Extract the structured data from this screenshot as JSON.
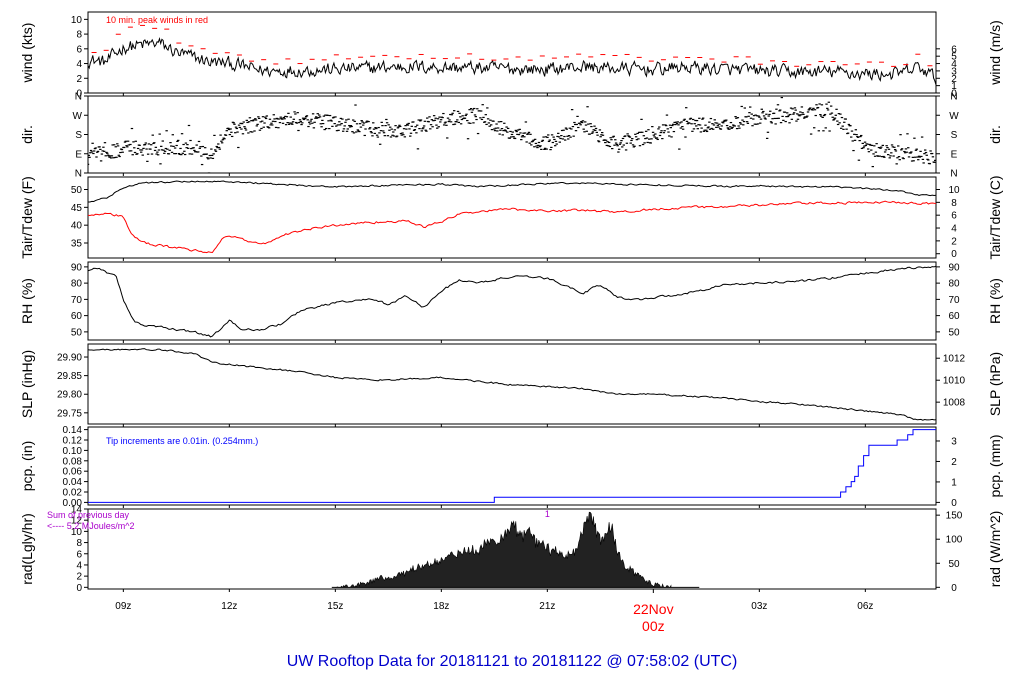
{
  "title": "UW Rooftop Data for 20181121  to  20181122 @ 07:58:02  (UTC)",
  "colors": {
    "text": "#000000",
    "red": "#ff0000",
    "blue": "#0000ff",
    "purple": "#aa00cc",
    "title": "#0000cc",
    "fill": "#222222"
  },
  "chart_data": {
    "type": "line",
    "x_axis": {
      "start_hour": 8.0,
      "end_hour": 32.0,
      "ticks": [
        {
          "hour": 9,
          "label": "09z"
        },
        {
          "hour": 12,
          "label": "12z"
        },
        {
          "hour": 15,
          "label": "15z"
        },
        {
          "hour": 18,
          "label": "18z"
        },
        {
          "hour": 21,
          "label": "21z"
        },
        {
          "hour": 27,
          "label": "03z"
        },
        {
          "hour": 30,
          "label": "06z"
        }
      ],
      "day_marker": {
        "hour": 24,
        "date_label": "22Nov",
        "time_label": "00z"
      }
    },
    "panels": [
      {
        "id": "wind",
        "ylabel_left": "wind (kts)",
        "ylabel_right": "wind (m/s)",
        "ylim": [
          0,
          11
        ],
        "left_ticks": [
          0,
          2,
          4,
          6,
          8,
          10
        ],
        "right_ticks": [
          {
            "v": 0,
            "l": "0"
          },
          {
            "v": 1,
            "l": "1"
          },
          {
            "v": 2,
            "l": "2"
          },
          {
            "v": 3,
            "l": "3"
          },
          {
            "v": 4,
            "l": "4"
          },
          {
            "v": 5,
            "l": "5"
          },
          {
            "v": 6,
            "l": "6"
          }
        ],
        "right_scale": 0.514444,
        "annotation": {
          "text": "10 min. peak winds in red",
          "color": "red"
        },
        "series": [
          {
            "style": "noisy",
            "color": "black",
            "x": [
              8,
              8.5,
              9,
              9.5,
              10,
              10.5,
              11,
              11.5,
              12,
              12.5,
              13,
              14,
              15,
              16,
              17,
              18,
              19,
              20,
              21,
              22,
              23,
              24,
              25,
              26,
              27,
              28,
              29,
              30,
              31,
              31.5,
              32
            ],
            "y": [
              4.5,
              4.2,
              6.2,
              6.5,
              6.8,
              5.5,
              4.8,
              4.2,
              4.0,
              3.5,
              3.0,
              3.1,
              3.2,
              3.4,
              3.6,
              3.5,
              3.4,
              3.3,
              3.2,
              3.6,
              3.3,
              3.2,
              3.5,
              3.2,
              3.0,
              2.8,
              2.9,
              2.6,
              2.6,
              3.5,
              2.0
            ],
            "noise": 0.8
          },
          {
            "style": "dashes",
            "color": "red",
            "x": [
              8,
              8.5,
              9,
              9.5,
              10,
              10.5,
              11,
              11.5,
              12,
              12.5,
              13,
              14,
              15,
              16,
              17,
              18,
              19,
              20,
              21,
              22,
              23,
              24,
              25,
              26,
              27,
              28,
              29,
              30,
              31,
              31.5,
              32
            ],
            "y": [
              5.8,
              5.6,
              8.6,
              8.8,
              9.0,
              7.2,
              6.4,
              5.8,
              5.3,
              4.8,
              4.4,
              4.5,
              4.7,
              4.9,
              5.1,
              5.0,
              4.9,
              4.8,
              4.6,
              5.2,
              4.8,
              4.6,
              5.0,
              4.6,
              4.4,
              4.1,
              4.2,
              3.9,
              3.8,
              4.8,
              3.2
            ],
            "noise": 0.5,
            "count": 70
          }
        ]
      },
      {
        "id": "dir",
        "ylabel_left": "dir.",
        "ylabel_right": "dir.",
        "ylim": [
          0,
          360
        ],
        "left_ticks": [
          {
            "v": 0,
            "l": "N"
          },
          {
            "v": 90,
            "l": "E"
          },
          {
            "v": 180,
            "l": "S"
          },
          {
            "v": 270,
            "l": "W"
          },
          {
            "v": 360,
            "l": "N"
          }
        ],
        "right_ticks": [
          {
            "v": 0,
            "l": "N"
          },
          {
            "v": 90,
            "l": "E"
          },
          {
            "v": 180,
            "l": "S"
          },
          {
            "v": 270,
            "l": "W"
          },
          {
            "v": 360,
            "l": "N"
          }
        ],
        "series": [
          {
            "style": "scatter",
            "color": "black",
            "x": [
              8,
              9,
              10,
              11,
              11.5,
              12,
              13,
              14,
              15,
              16,
              17,
              18,
              19,
              20,
              21,
              22,
              23,
              24,
              25,
              26,
              27,
              28,
              29,
              30,
              31,
              32
            ],
            "y": [
              75,
              115,
              120,
              120,
              95,
              200,
              240,
              255,
              230,
              205,
              195,
              250,
              270,
              180,
              135,
              225,
              130,
              175,
              230,
              215,
              265,
              270,
              300,
              120,
              95,
              70
            ],
            "noise": 35
          }
        ]
      },
      {
        "id": "temp",
        "ylabel_left": "Tair/Tdew (F)",
        "ylabel_right": "Tair/Tdew (C)",
        "ylim": [
          30.8,
          53.5
        ],
        "left_ticks": [
          35,
          40,
          45,
          50
        ],
        "right_ticks": [
          {
            "v": 32,
            "l": "0"
          },
          {
            "v": 35.6,
            "l": "2"
          },
          {
            "v": 39.2,
            "l": "4"
          },
          {
            "v": 42.8,
            "l": "6"
          },
          {
            "v": 46.4,
            "l": "8"
          },
          {
            "v": 50,
            "l": "10"
          }
        ],
        "series": [
          {
            "style": "line",
            "color": "black",
            "x": [
              8,
              8.5,
              9,
              9.5,
              10,
              11,
              12,
              13,
              14,
              15,
              16,
              17,
              18,
              19,
              20,
              21,
              22,
              23,
              24,
              25,
              26,
              27,
              28,
              29,
              30,
              31,
              31.5,
              32
            ],
            "y": [
              46.5,
              47.5,
              50.5,
              51.8,
              52.0,
              52.3,
              52.2,
              51.7,
              51.2,
              50.7,
              51.0,
              51.3,
              51.5,
              50.8,
              51.2,
              51.7,
              51.8,
              51.5,
              51.3,
              51.1,
              50.9,
              51.0,
              50.8,
              50.7,
              50.3,
              49.6,
              48.5,
              48.4
            ],
            "noise": 0.2
          },
          {
            "style": "line",
            "color": "red",
            "x": [
              8,
              8.5,
              9,
              9.2,
              9.5,
              10,
              11,
              11.5,
              11.8,
              12,
              12.5,
              13,
              13.5,
              14,
              15,
              16,
              17,
              17.5,
              18,
              18.5,
              19,
              20,
              21,
              22,
              23,
              24,
              25,
              26,
              27,
              28,
              29,
              30,
              31,
              32
            ],
            "y": [
              43.0,
              43.2,
              42.5,
              37.8,
              35.2,
              34.3,
              33.0,
              32.3,
              36.0,
              37.2,
              35.5,
              34.8,
              37.0,
              38.5,
              40.0,
              40.8,
              41.2,
              39.5,
              41.0,
              43.0,
              43.8,
              44.5,
              44.0,
              44.2,
              43.6,
              44.5,
              45.0,
              45.2,
              45.6,
              46.1,
              46.2,
              46.3,
              46.5,
              46.0
            ],
            "noise": 0.3
          }
        ]
      },
      {
        "id": "rh",
        "ylabel_left": "RH (%)",
        "ylabel_right": "RH (%)",
        "ylim": [
          45,
          93
        ],
        "left_ticks": [
          50,
          60,
          70,
          80,
          90
        ],
        "right_ticks": [
          {
            "v": 50,
            "l": "50"
          },
          {
            "v": 60,
            "l": "60"
          },
          {
            "v": 70,
            "l": "70"
          },
          {
            "v": 80,
            "l": "80"
          },
          {
            "v": 90,
            "l": "90"
          }
        ],
        "series": [
          {
            "style": "line",
            "color": "black",
            "x": [
              8,
              8.3,
              8.8,
              9,
              9.3,
              9.5,
              10,
              11,
              11.5,
              12,
              12.3,
              12.8,
              13.5,
              14,
              15,
              16,
              16.5,
              17,
              17.5,
              18,
              18.5,
              19,
              20,
              21,
              22,
              22.5,
              23,
              23.5,
              24,
              25,
              26,
              27,
              28,
              29,
              30,
              31,
              32
            ],
            "y": [
              88,
              89,
              84,
              70,
              57,
              54,
              53,
              50,
              47,
              57,
              52,
              51,
              55,
              63,
              68,
              70,
              67,
              72,
              65,
              75,
              82,
              80,
              84,
              83,
              74,
              79,
              71,
              70,
              71,
              74,
              79,
              80,
              81,
              83,
              86,
              89,
              90
            ],
            "noise": 0.6
          }
        ]
      },
      {
        "id": "slp",
        "ylabel_left": "SLP (inHg)",
        "ylabel_right": "SLP (hPa)",
        "ylim": [
          29.72,
          29.935
        ],
        "left_ticks": [
          {
            "v": 29.75,
            "l": "29.75"
          },
          {
            "v": 29.8,
            "l": "29.80"
          },
          {
            "v": 29.85,
            "l": "29.85"
          },
          {
            "v": 29.9,
            "l": "29.90"
          }
        ],
        "right_ticks": [
          {
            "v": 29.7787,
            "l": "1008"
          },
          {
            "v": 29.8377,
            "l": "1010"
          },
          {
            "v": 29.8968,
            "l": "1012"
          }
        ],
        "series": [
          {
            "style": "line",
            "color": "black",
            "x": [
              8,
              9,
              10,
              11,
              11.5,
              12,
              13,
              14,
              15,
              16,
              17,
              18,
              19,
              20,
              21,
              22,
              23,
              24,
              25,
              26,
              27,
              28,
              29,
              30,
              31,
              31.5,
              32
            ],
            "y": [
              29.92,
              29.92,
              29.92,
              29.91,
              29.885,
              29.88,
              29.87,
              29.86,
              29.845,
              29.838,
              29.84,
              29.845,
              29.835,
              29.825,
              29.82,
              29.815,
              29.8,
              29.8,
              29.795,
              29.79,
              29.78,
              29.775,
              29.765,
              29.755,
              29.745,
              29.73,
              29.733
            ],
            "noise": 0.002
          }
        ]
      },
      {
        "id": "pcp",
        "ylabel_left": "pcp. (in)",
        "ylabel_right": "pcp. (mm)",
        "ylim": [
          -0.005,
          0.145
        ],
        "left_ticks": [
          {
            "v": 0,
            "l": "0.00"
          },
          {
            "v": 0.02,
            "l": "0.02"
          },
          {
            "v": 0.04,
            "l": "0.04"
          },
          {
            "v": 0.06,
            "l": "0.06"
          },
          {
            "v": 0.08,
            "l": "0.08"
          },
          {
            "v": 0.1,
            "l": "0.10"
          },
          {
            "v": 0.12,
            "l": "0.12"
          },
          {
            "v": 0.14,
            "l": "0.14"
          }
        ],
        "right_ticks": [
          {
            "v": 0,
            "l": "0"
          },
          {
            "v": 0.03937,
            "l": "1"
          },
          {
            "v": 0.07874,
            "l": "2"
          },
          {
            "v": 0.11811,
            "l": "3"
          }
        ],
        "annotation": {
          "text": "Tip increments are 0.01in. (0.254mm.)",
          "color": "blue"
        },
        "series": [
          {
            "style": "step",
            "color": "blue",
            "x": [
              8,
              19.5,
              29.3,
              29.45,
              29.6,
              29.7,
              29.8,
              29.95,
              30.1,
              30.9,
              31.2,
              31.35,
              31.55,
              32
            ],
            "y": [
              0,
              0.01,
              0.02,
              0.03,
              0.04,
              0.05,
              0.07,
              0.09,
              0.11,
              0.12,
              0.13,
              0.14,
              0.14,
              0.14
            ]
          }
        ]
      },
      {
        "id": "rad",
        "ylabel_left": "rad(Lgly/hr)",
        "ylabel_right": "rad (W/m^2)",
        "ylim": [
          -0.3,
          14
        ],
        "left_ticks": [
          0,
          2,
          4,
          6,
          8,
          10,
          12,
          14
        ],
        "right_ticks": [
          {
            "v": 0,
            "l": "0"
          },
          {
            "v": 4.3,
            "l": "50"
          },
          {
            "v": 8.6,
            "l": "100"
          },
          {
            "v": 12.9,
            "l": "150"
          }
        ],
        "annotation": {
          "text": "Sum of previous day",
          "line2": "<---- 5.2 MJoules/m^2",
          "marker": "1",
          "color": "purple"
        },
        "series": [
          {
            "style": "filled",
            "color": "black",
            "x": [
              15,
              15.5,
              15.8,
              16,
              16.5,
              17,
              17.5,
              18,
              18.5,
              19,
              19.5,
              19.8,
              20,
              20.3,
              20.5,
              20.7,
              21,
              21.3,
              21.5,
              21.8,
              22,
              22.2,
              22.5,
              22.8,
              23,
              23.2,
              23.5,
              24,
              24.5
            ],
            "y": [
              0,
              0.1,
              0.6,
              1.2,
              1.8,
              2.6,
              4,
              5,
              6,
              6.6,
              8.5,
              9.5,
              10.8,
              9.5,
              10.2,
              8,
              7,
              6.3,
              5.5,
              6.2,
              10,
              13.3,
              8,
              11,
              6,
              3.5,
              2.5,
              0.4,
              0
            ],
            "noise": 0.9
          }
        ]
      }
    ]
  }
}
